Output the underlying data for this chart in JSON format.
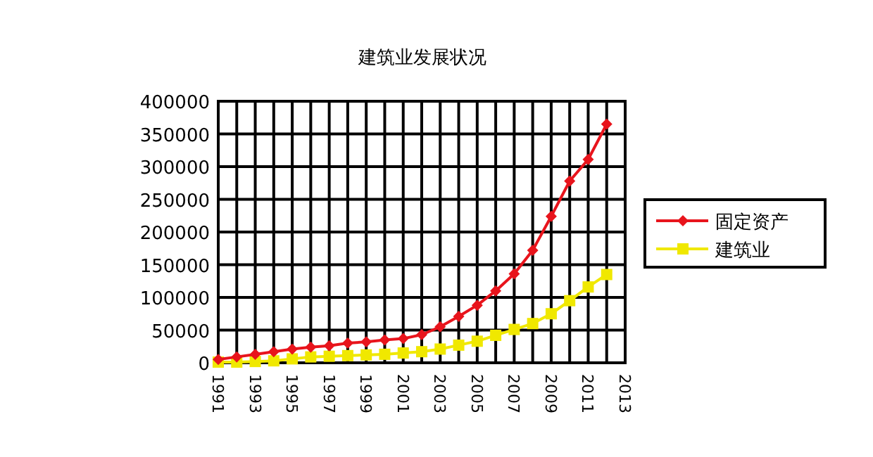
{
  "chart_data": {
    "type": "line",
    "title": "建筑业发展状况",
    "x": [
      1991,
      1992,
      1993,
      1994,
      1995,
      1996,
      1997,
      1998,
      1999,
      2000,
      2001,
      2002,
      2003,
      2004,
      2005,
      2006,
      2007,
      2008,
      2009,
      2010,
      2011,
      2012
    ],
    "series": [
      {
        "name": "固定资产",
        "color": "#e8141c",
        "marker": "diamond",
        "values": [
          5000,
          9000,
          13000,
          17000,
          21000,
          24000,
          26000,
          30000,
          32000,
          35000,
          37000,
          43000,
          55000,
          71000,
          88000,
          110000,
          136000,
          172000,
          224000,
          278000,
          311000,
          365000
        ]
      },
      {
        "name": "建筑业",
        "color": "#f0e800",
        "marker": "square",
        "values": [
          1000,
          1000,
          2000,
          3000,
          6000,
          9000,
          10000,
          11000,
          12000,
          13000,
          15000,
          17000,
          21000,
          27000,
          33000,
          42000,
          51000,
          60000,
          75000,
          95000,
          116000,
          135000
        ]
      }
    ],
    "xlim": [
      1991,
      2013
    ],
    "xticks": [
      1991,
      {
        "value": 1992,
        "label": null
      },
      1993,
      {
        "value": 1994,
        "label": null
      },
      1995,
      {
        "value": 1996,
        "label": null
      },
      1997,
      {
        "value": 1998,
        "label": null
      },
      1999,
      {
        "value": 2000,
        "label": null
      },
      2001,
      {
        "value": 2002,
        "label": null
      },
      2003,
      {
        "value": 2004,
        "label": null
      },
      2005,
      {
        "value": 2006,
        "label": null
      },
      2007,
      {
        "value": 2008,
        "label": null
      },
      2009,
      {
        "value": 2010,
        "label": null
      },
      2011,
      {
        "value": 2012,
        "label": null
      },
      2013
    ],
    "ylim": [
      0,
      400000
    ],
    "yticks": [
      0,
      50000,
      100000,
      150000,
      200000,
      250000,
      300000,
      350000,
      400000
    ],
    "grid": true,
    "legend": "right",
    "line_style": "solid"
  }
}
